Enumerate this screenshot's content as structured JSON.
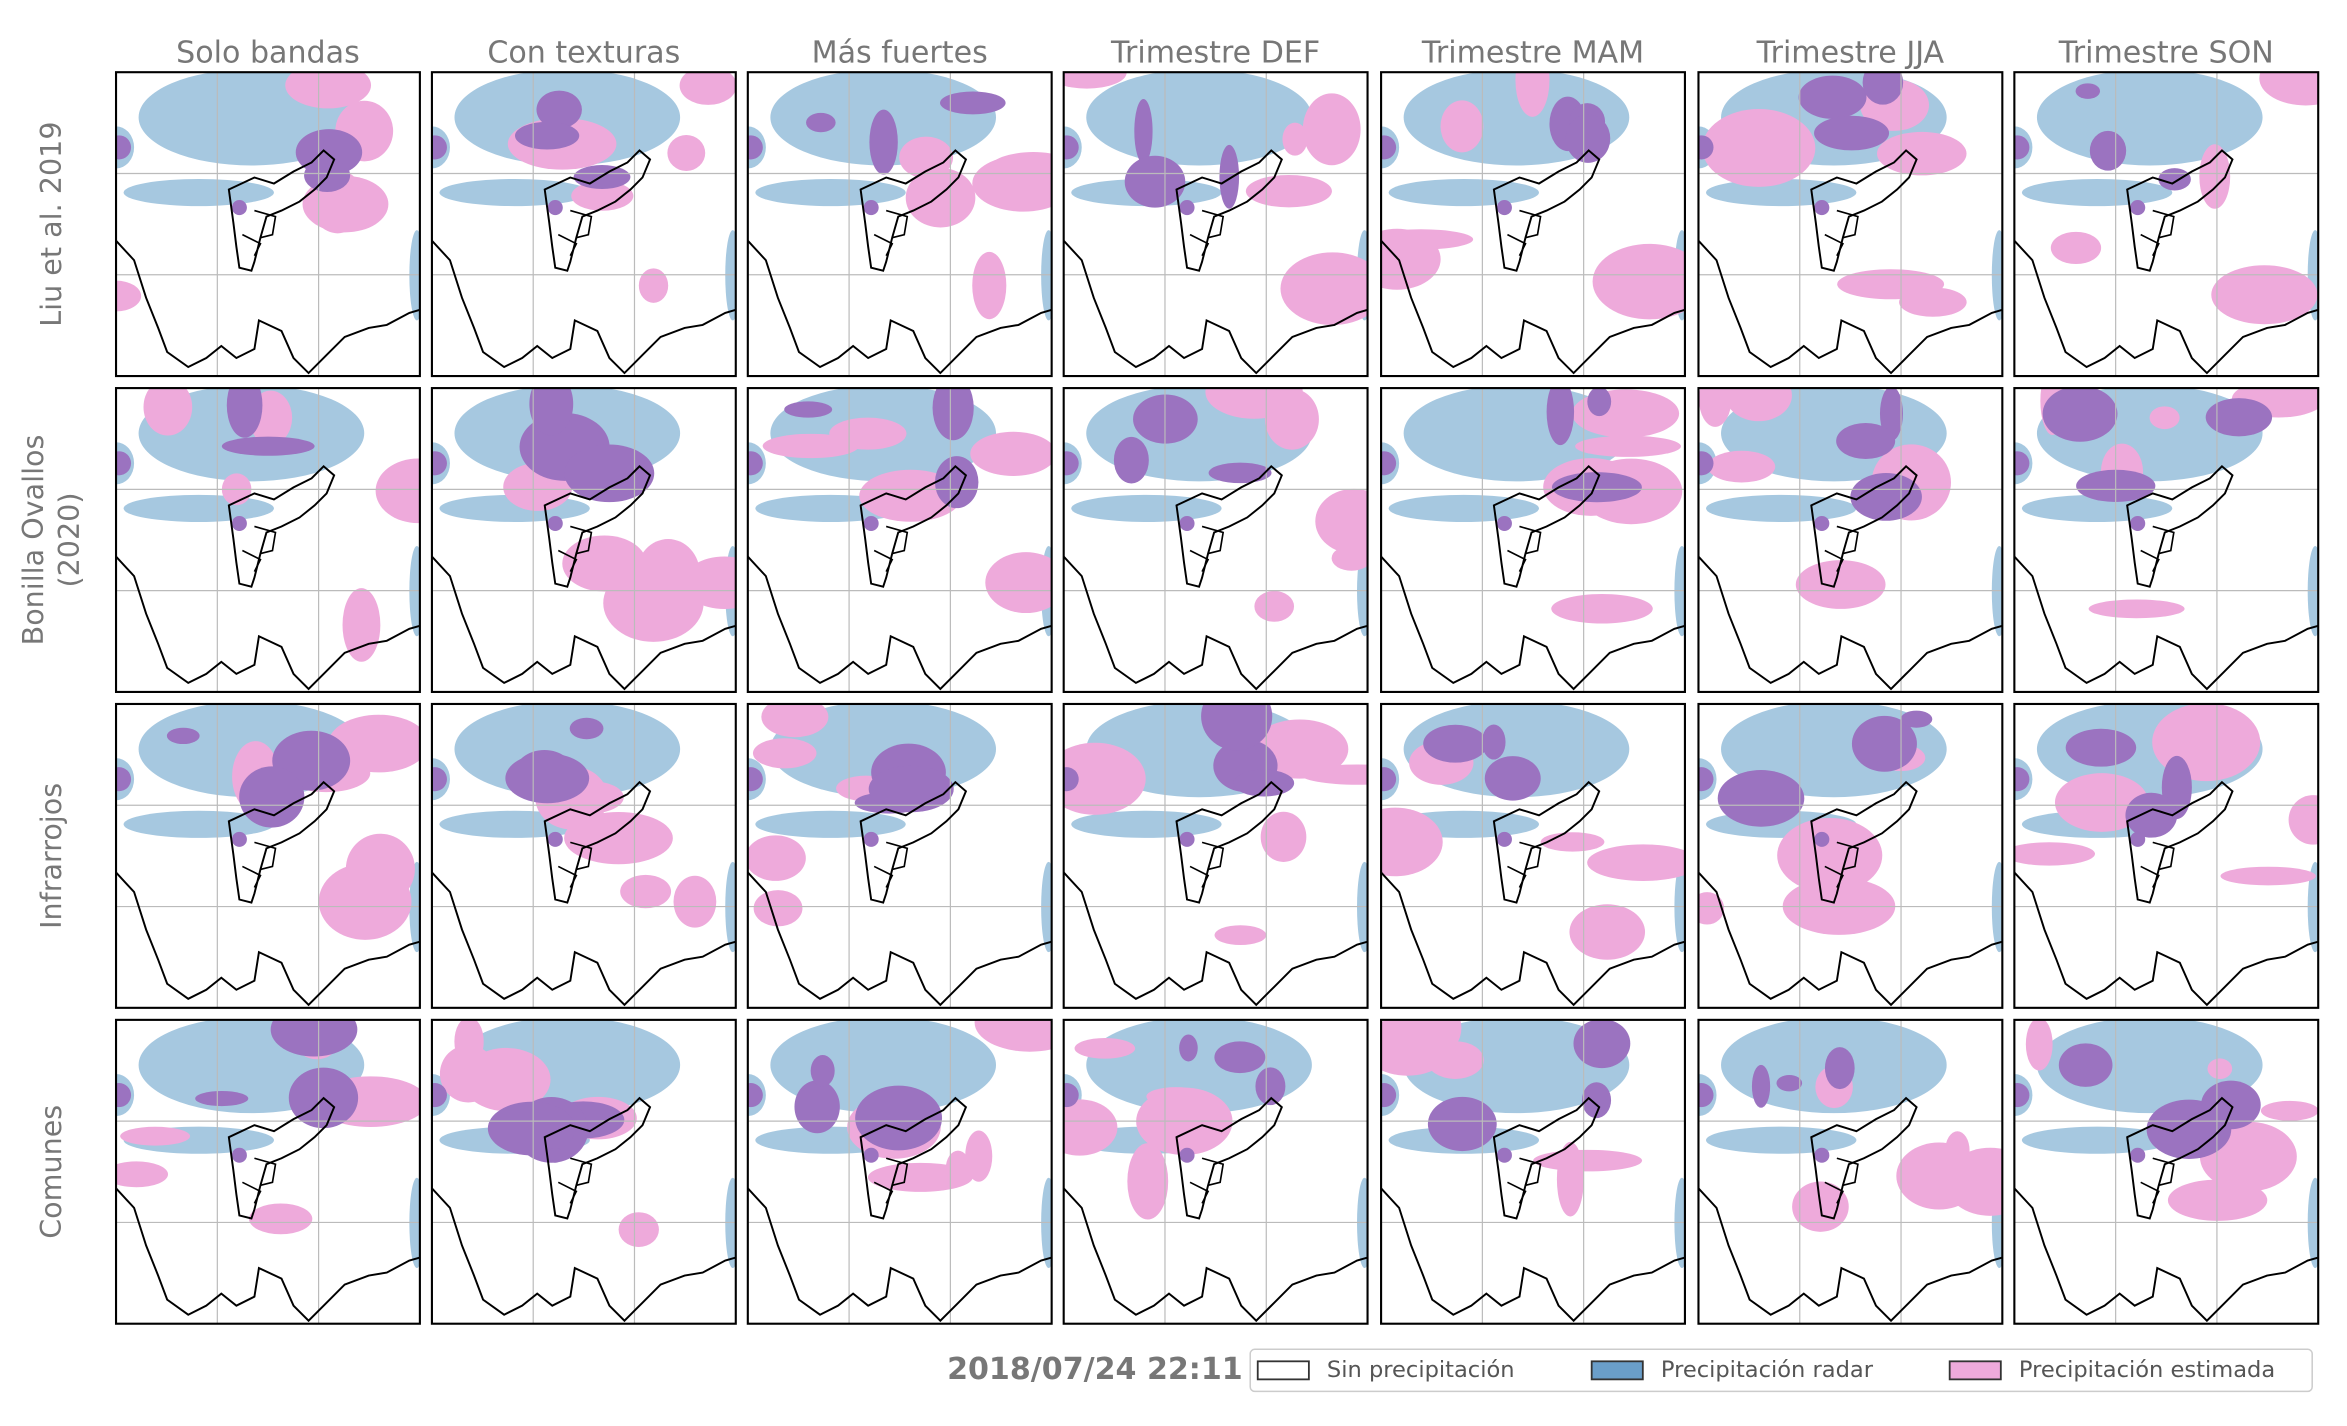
{
  "columns": [
    "Solo bandas",
    "Con texturas",
    "Más fuertes",
    "Trimestre DEF",
    "Trimestre MAM",
    "Trimestre JJA",
    "Trimestre SON"
  ],
  "rows": [
    [
      "Liu et al. 2019"
    ],
    [
      "Bonilla Ovallos",
      "(2020)"
    ],
    [
      "Infrarrojos"
    ],
    [
      "Comunes"
    ]
  ],
  "timestamp": "2018/07/24 22:11",
  "legend": [
    {
      "label": "Sin precipitación",
      "color": "#ffffff"
    },
    {
      "label": "Precipitación radar",
      "color": "#6a9ec9"
    },
    {
      "label": "Precipitación estimada",
      "color": "#eeaadb"
    }
  ]
}
